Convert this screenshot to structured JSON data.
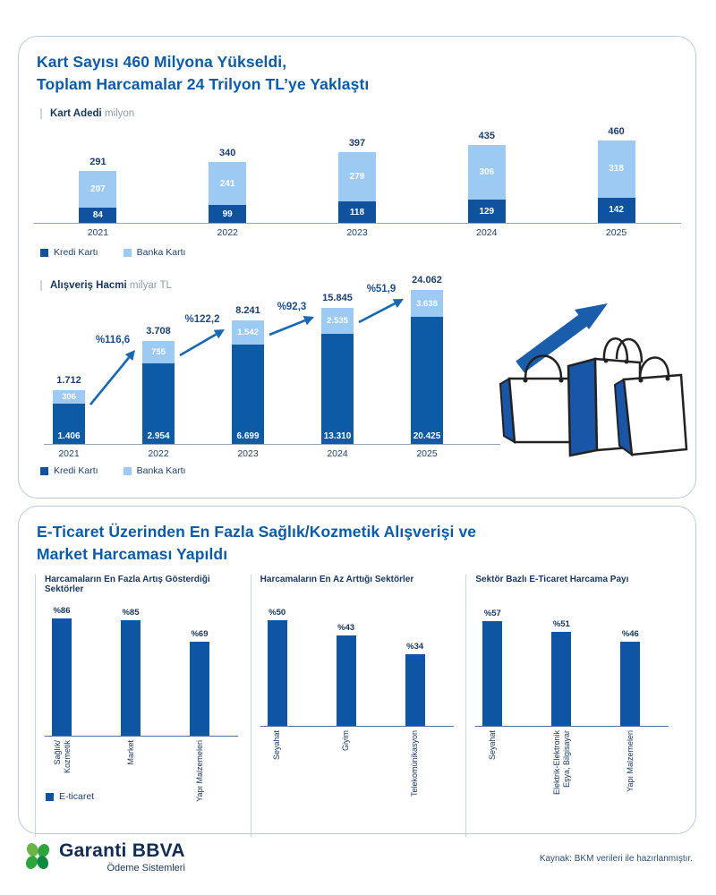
{
  "panel1": {
    "title_line1": "Kart Sayısı 460 Milyona Yükseldi,",
    "title_line2": "Toplam Harcamalar 24 Trilyon TL’ye Yaklaştı",
    "chart1": {
      "label": "Kart Adedi",
      "unit": "milyon",
      "years": [
        "2021",
        "2022",
        "2023",
        "2024",
        "2025"
      ],
      "totals": [
        "291",
        "340",
        "397",
        "435",
        "460"
      ],
      "banka": [
        "207",
        "241",
        "279",
        "306",
        "318"
      ],
      "kredi": [
        "84",
        "99",
        "118",
        "129",
        "142"
      ]
    },
    "legend": {
      "kredi": "Kredi Kartı",
      "banka": "Banka Kartı"
    },
    "chart2": {
      "label": "Alışveriş Hacmi",
      "unit": "milyar TL",
      "years": [
        "2021",
        "2022",
        "2023",
        "2024",
        "2025"
      ],
      "totals": [
        "1.712",
        "3.708",
        "8.241",
        "15.845",
        "24.062"
      ],
      "banka": [
        "306",
        "755",
        "1.542",
        "2.535",
        "3.638"
      ],
      "kredi": [
        "1.406",
        "2.954",
        "6.699",
        "13.310",
        "20.425"
      ],
      "growth": [
        "%116,6",
        "%122,2",
        "%92,3",
        "%51,9"
      ]
    }
  },
  "panel2": {
    "title_line1": "E-Ticaret Üzerinden En Fazla Sağlık/Kozmetik Alışverişi ve",
    "title_line2": "Market Harcaması Yapıldı",
    "legend": "E-ticaret",
    "charts": [
      {
        "title": "Harcamaların En Fazla Artış Gösterdiği Sektörler",
        "values": [
          86,
          85,
          69
        ],
        "value_labels": [
          "%86",
          "%85",
          "%69"
        ],
        "labels": [
          [
            "Sağlık/",
            "Kozmetik"
          ],
          [
            "Market"
          ],
          [
            "Yapı Malzemeleri"
          ]
        ]
      },
      {
        "title": "Harcamaların En Az Arttığı Sektörler",
        "values": [
          50,
          43,
          34
        ],
        "value_labels": [
          "%50",
          "%43",
          "%34"
        ],
        "labels": [
          [
            "Seyahat"
          ],
          [
            "Giyim"
          ],
          [
            "Telekomünikasyon"
          ]
        ]
      },
      {
        "title": "Sektör Bazlı E-Ticaret Harcama Payı",
        "values": [
          57,
          51,
          46
        ],
        "value_labels": [
          "%57",
          "%51",
          "%46"
        ],
        "labels": [
          [
            "Seyahat"
          ],
          [
            "Elektrik-Elektronik",
            "Eşya, Bilgisayar"
          ],
          [
            "Yapı Malzemeleri"
          ]
        ]
      }
    ]
  },
  "footer": {
    "brand": "Garanti BBVA",
    "brand_sub": "Ödeme Sistemleri",
    "source": "Kaynak: BKM verileri ile hazırlanmıştır."
  },
  "colors": {
    "accent_blue": "#0a5cab",
    "bar_dark": "#11529e",
    "bar_light": "#9ccaf2",
    "navy_text": "#1c3e6e",
    "arrow_blue": "#1668b3",
    "panel_border": "#b7cbdc",
    "logo_green": "#2aa63c"
  },
  "chart_data": [
    {
      "type": "bar",
      "stacked": true,
      "title": "Kart Adedi",
      "ylabel": "milyon",
      "categories": [
        2021,
        2022,
        2023,
        2024,
        2025
      ],
      "series": [
        {
          "name": "Kredi Kartı",
          "values": [
            84,
            99,
            118,
            129,
            142
          ]
        },
        {
          "name": "Banka Kartı",
          "values": [
            207,
            241,
            279,
            306,
            318
          ]
        }
      ],
      "totals": [
        291,
        340,
        397,
        435,
        460
      ],
      "grid": false,
      "legend_position": "bottom-left"
    },
    {
      "type": "bar",
      "stacked": true,
      "title": "Alışveriş Hacmi",
      "ylabel": "milyar TL",
      "categories": [
        2021,
        2022,
        2023,
        2024,
        2025
      ],
      "series": [
        {
          "name": "Kredi Kartı",
          "values": [
            1406,
            2954,
            6699,
            13310,
            20425
          ]
        },
        {
          "name": "Banka Kartı",
          "values": [
            306,
            755,
            1542,
            2535,
            3638
          ]
        }
      ],
      "totals": [
        1712,
        3708,
        8241,
        15845,
        24062
      ],
      "yoy_growth_percent": [
        116.6,
        122.2,
        92.3,
        51.9
      ],
      "grid": false,
      "legend_position": "bottom-left",
      "note": "bar heights stylized, not drawn to scale"
    },
    {
      "type": "bar",
      "title": "Harcamaların En Fazla Artış Gösterdiği Sektörler",
      "categories": [
        "Sağlık/Kozmetik",
        "Market",
        "Yapı Malzemeleri"
      ],
      "values": [
        86,
        85,
        69
      ],
      "ylabel": "%",
      "series_name": "E-ticaret",
      "grid": false
    },
    {
      "type": "bar",
      "title": "Harcamaların En Az Arttığı Sektörler",
      "categories": [
        "Seyahat",
        "Giyim",
        "Telekomünikasyon"
      ],
      "values": [
        50,
        43,
        34
      ],
      "ylabel": "%",
      "series_name": "E-ticaret",
      "grid": false
    },
    {
      "type": "bar",
      "title": "Sektör Bazlı E-Ticaret Harcama Payı",
      "categories": [
        "Seyahat",
        "Elektrik-Elektronik Eşya, Bilgisayar",
        "Yapı Malzemeleri"
      ],
      "values": [
        57,
        51,
        46
      ],
      "ylabel": "%",
      "series_name": "E-ticaret",
      "grid": false
    }
  ]
}
